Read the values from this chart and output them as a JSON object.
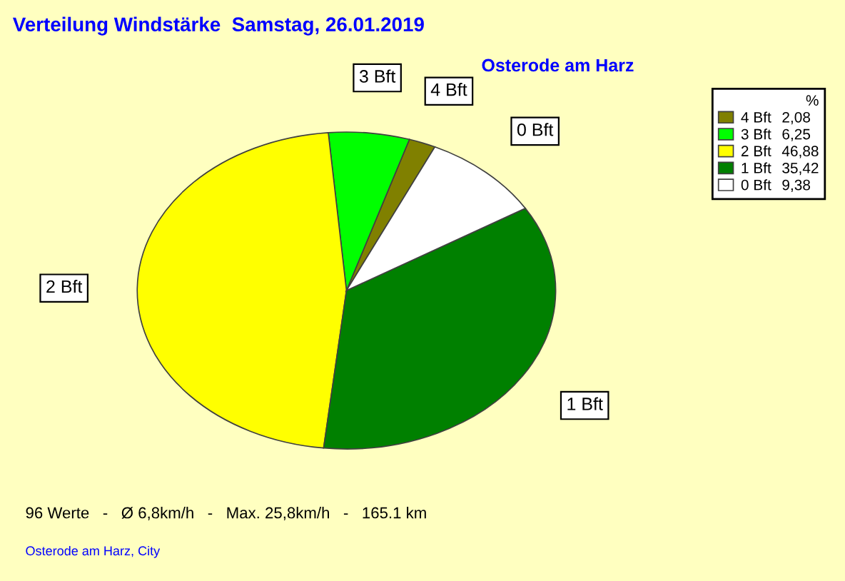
{
  "chart_data": {
    "type": "pie",
    "title": "Verteilung Windstärke  Samstag, 26.01.2019",
    "subtitle": "Osterode am Harz",
    "categories": [
      "4 Bft",
      "3 Bft",
      "2 Bft",
      "1 Bft",
      "0 Bft"
    ],
    "values": [
      2.08,
      6.25,
      46.88,
      35.42,
      9.38
    ],
    "colors": [
      "#808000",
      "#00ff00",
      "#ffff00",
      "#008000",
      "#ffffff"
    ],
    "value_labels": [
      "2,08",
      "6,25",
      "46,88",
      "35,42",
      "9,38"
    ],
    "legend_title": "%",
    "legend": "top right",
    "annotations": [
      "96 Werte   -   Ø 6,8km/h   -   Max. 25,8km/h   -   165.1 km",
      "Osterode am Harz, City"
    ]
  }
}
